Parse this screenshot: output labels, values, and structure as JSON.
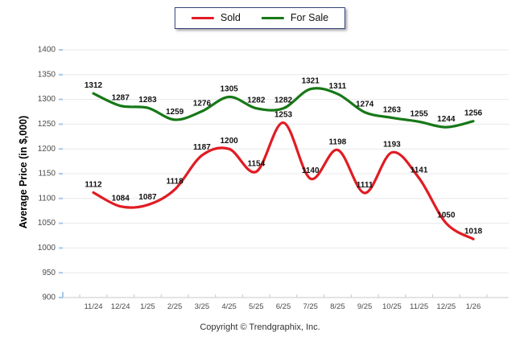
{
  "legend": {
    "items": [
      {
        "label": "Sold",
        "color": "#e11c23"
      },
      {
        "label": "For Sale",
        "color": "#177817"
      }
    ]
  },
  "y_axis": {
    "title": "Average Price (in $,000)",
    "ticks": [
      1400,
      1350,
      1300,
      1250,
      1200,
      1150,
      1100,
      1050,
      1000,
      950,
      900
    ],
    "min": 900,
    "max": 1400,
    "step": 50
  },
  "footer": {
    "copyright": "Copyright © Trendgraphix, Inc."
  },
  "colors": {
    "grid": "#e8e8e8",
    "axis": "#c9c9c9",
    "y_tick": "#a5c8e8",
    "tick_text": "#4a4a4a",
    "data_label": "#111111"
  },
  "chart_data": {
    "type": "line",
    "title": "",
    "xlabel": "",
    "ylabel": "Average Price (in $,000)",
    "categories": [
      "11/24",
      "12/24",
      "1/25",
      "2/25",
      "3/25",
      "4/25",
      "5/25",
      "6/25",
      "7/25",
      "8/25",
      "9/25",
      "10/25",
      "11/25",
      "12/25",
      "1/26"
    ],
    "series": [
      {
        "name": "Sold",
        "color": "#e11c23",
        "values": [
          1112,
          1084,
          1087,
          1118,
          1187,
          1200,
          1154,
          1253,
          1140,
          1198,
          1111,
          1193,
          1141,
          1050,
          1018
        ]
      },
      {
        "name": "For Sale",
        "color": "#177817",
        "values": [
          1312,
          1287,
          1283,
          1259,
          1276,
          1305,
          1282,
          1282,
          1321,
          1311,
          1274,
          1263,
          1255,
          1244,
          1256
        ]
      }
    ],
    "ylim": [
      900,
      1400
    ],
    "ytick_step": 50,
    "grid": true,
    "smooth": true,
    "legend_position": "top",
    "data_labels": true
  }
}
